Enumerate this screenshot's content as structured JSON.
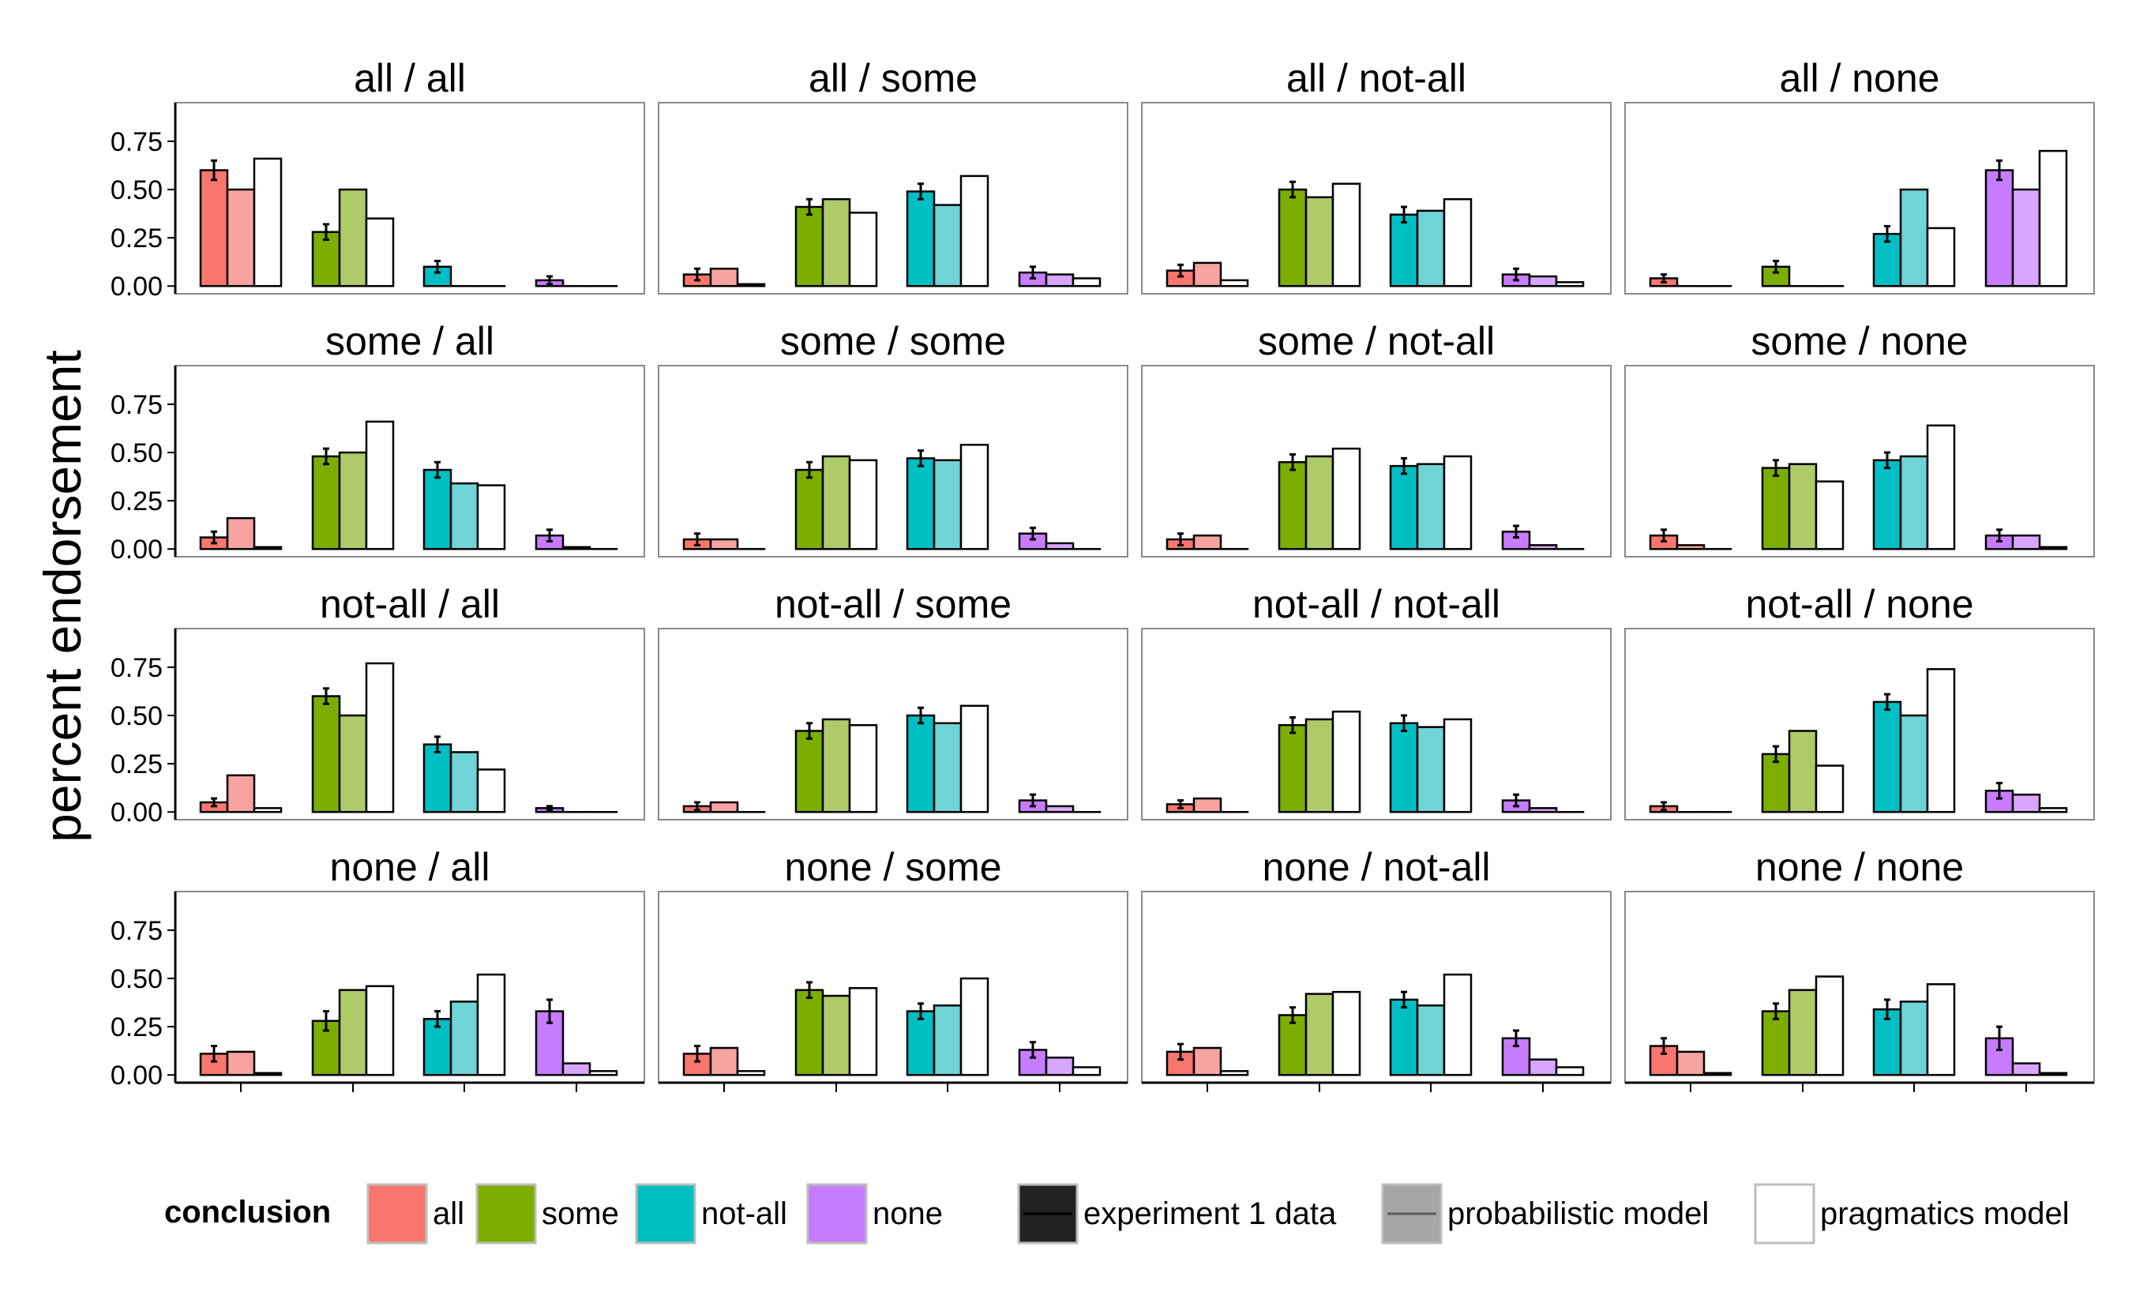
{
  "chart_data": {
    "type": "bar",
    "ylabel": "percent endorsement",
    "ylim": [
      -0.04,
      0.95
    ],
    "y_ticks": [
      "0.00",
      "0.25",
      "0.50",
      "0.75"
    ],
    "y_tick_values": [
      0,
      0.25,
      0.5,
      0.75
    ],
    "grid": false,
    "categories": [
      "all",
      "some",
      "not-all",
      "none"
    ],
    "series_types": [
      "experiment 1 data",
      "probabilistic model",
      "pragmatics model"
    ],
    "colors": {
      "all": "#F8766D",
      "some": "#7CAE00",
      "not-all": "#00BFC4",
      "none": "#C77CFF",
      "light_all": "#F7A3A0",
      "light_some": "#AECA69",
      "light_not-all": "#6FD4D6",
      "light_none": "#D9A6FF"
    },
    "legend": {
      "title": "conclusion",
      "conclusions": [
        "all",
        "some",
        "not-all",
        "none"
      ],
      "models": [
        "experiment 1 data",
        "probabilistic model",
        "pragmatics model"
      ]
    },
    "panels": [
      {
        "title": "all / all",
        "data": [
          0.6,
          0.28,
          0.1,
          0.03
        ],
        "err": [
          0.05,
          0.04,
          0.03,
          0.02
        ],
        "prob": [
          0.5,
          0.5,
          0.0,
          0.0
        ],
        "prag": [
          0.66,
          0.35,
          0.0,
          0.0
        ]
      },
      {
        "title": "all / some",
        "data": [
          0.06,
          0.41,
          0.49,
          0.07
        ],
        "err": [
          0.03,
          0.04,
          0.04,
          0.03
        ],
        "prob": [
          0.09,
          0.45,
          0.42,
          0.06
        ],
        "prag": [
          0.01,
          0.38,
          0.57,
          0.04
        ]
      },
      {
        "title": "all / not-all",
        "data": [
          0.08,
          0.5,
          0.37,
          0.06
        ],
        "err": [
          0.03,
          0.04,
          0.04,
          0.03
        ],
        "prob": [
          0.12,
          0.46,
          0.39,
          0.05
        ],
        "prag": [
          0.03,
          0.53,
          0.45,
          0.02
        ]
      },
      {
        "title": "all / none",
        "data": [
          0.04,
          0.1,
          0.27,
          0.6
        ],
        "err": [
          0.02,
          0.03,
          0.04,
          0.05
        ],
        "prob": [
          0.0,
          0.0,
          0.5,
          0.5
        ],
        "prag": [
          0.0,
          0.0,
          0.3,
          0.7
        ]
      },
      {
        "title": "some / all",
        "data": [
          0.06,
          0.48,
          0.41,
          0.07
        ],
        "err": [
          0.03,
          0.04,
          0.04,
          0.03
        ],
        "prob": [
          0.16,
          0.5,
          0.34,
          0.01
        ],
        "prag": [
          0.01,
          0.66,
          0.33,
          0.0
        ]
      },
      {
        "title": "some / some",
        "data": [
          0.05,
          0.41,
          0.47,
          0.08
        ],
        "err": [
          0.03,
          0.04,
          0.04,
          0.03
        ],
        "prob": [
          0.05,
          0.48,
          0.46,
          0.03
        ],
        "prag": [
          0.0,
          0.46,
          0.54,
          0.0
        ]
      },
      {
        "title": "some / not-all",
        "data": [
          0.05,
          0.45,
          0.43,
          0.09
        ],
        "err": [
          0.03,
          0.04,
          0.04,
          0.03
        ],
        "prob": [
          0.07,
          0.48,
          0.44,
          0.02
        ],
        "prag": [
          0.0,
          0.52,
          0.48,
          0.0
        ]
      },
      {
        "title": "some / none",
        "data": [
          0.07,
          0.42,
          0.46,
          0.07
        ],
        "err": [
          0.03,
          0.04,
          0.04,
          0.03
        ],
        "prob": [
          0.02,
          0.44,
          0.48,
          0.07
        ],
        "prag": [
          0.0,
          0.35,
          0.64,
          0.01
        ]
      },
      {
        "title": "not-all / all",
        "data": [
          0.05,
          0.6,
          0.35,
          0.02
        ],
        "err": [
          0.02,
          0.04,
          0.04,
          0.01
        ],
        "prob": [
          0.19,
          0.5,
          0.31,
          0.0
        ],
        "prag": [
          0.02,
          0.77,
          0.22,
          0.0
        ]
      },
      {
        "title": "not-all / some",
        "data": [
          0.03,
          0.42,
          0.5,
          0.06
        ],
        "err": [
          0.02,
          0.04,
          0.04,
          0.03
        ],
        "prob": [
          0.05,
          0.48,
          0.46,
          0.03
        ],
        "prag": [
          0.0,
          0.45,
          0.55,
          0.0
        ]
      },
      {
        "title": "not-all / not-all",
        "data": [
          0.04,
          0.45,
          0.46,
          0.06
        ],
        "err": [
          0.02,
          0.04,
          0.04,
          0.03
        ],
        "prob": [
          0.07,
          0.48,
          0.44,
          0.02
        ],
        "prag": [
          0.0,
          0.52,
          0.48,
          0.0
        ]
      },
      {
        "title": "not-all / none",
        "data": [
          0.03,
          0.3,
          0.57,
          0.11
        ],
        "err": [
          0.02,
          0.04,
          0.04,
          0.04
        ],
        "prob": [
          0.0,
          0.42,
          0.5,
          0.09
        ],
        "prag": [
          0.0,
          0.24,
          0.74,
          0.02
        ]
      },
      {
        "title": "none / all",
        "data": [
          0.11,
          0.28,
          0.29,
          0.33
        ],
        "err": [
          0.04,
          0.05,
          0.04,
          0.06
        ],
        "prob": [
          0.12,
          0.44,
          0.38,
          0.06
        ],
        "prag": [
          0.01,
          0.46,
          0.52,
          0.02
        ]
      },
      {
        "title": "none / some",
        "data": [
          0.11,
          0.44,
          0.33,
          0.13
        ],
        "err": [
          0.04,
          0.04,
          0.04,
          0.04
        ],
        "prob": [
          0.14,
          0.41,
          0.36,
          0.09
        ],
        "prag": [
          0.02,
          0.45,
          0.5,
          0.04
        ]
      },
      {
        "title": "none / not-all",
        "data": [
          0.12,
          0.31,
          0.39,
          0.19
        ],
        "err": [
          0.04,
          0.04,
          0.04,
          0.04
        ],
        "prob": [
          0.14,
          0.42,
          0.36,
          0.08
        ],
        "prag": [
          0.02,
          0.43,
          0.52,
          0.04
        ]
      },
      {
        "title": "none / none",
        "data": [
          0.15,
          0.33,
          0.34,
          0.19
        ],
        "err": [
          0.04,
          0.04,
          0.05,
          0.06
        ],
        "prob": [
          0.12,
          0.44,
          0.38,
          0.06
        ],
        "prag": [
          0.01,
          0.51,
          0.47,
          0.01
        ]
      }
    ]
  }
}
